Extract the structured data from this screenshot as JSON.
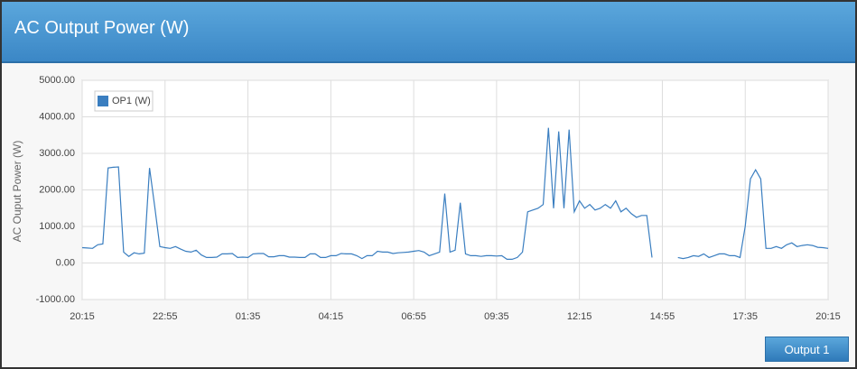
{
  "chart_data": {
    "type": "line",
    "title": "AC Output Power (W)",
    "y_label": "AC Ouput Power (W)",
    "xlim": [
      0,
      1440
    ],
    "xticks": [
      {
        "value": 0,
        "label": "20:15"
      },
      {
        "value": 160,
        "label": "22:55"
      },
      {
        "value": 320,
        "label": "01:35"
      },
      {
        "value": 480,
        "label": "04:15"
      },
      {
        "value": 640,
        "label": "06:55"
      },
      {
        "value": 800,
        "label": "09:35"
      },
      {
        "value": 960,
        "label": "12:15"
      },
      {
        "value": 1120,
        "label": "14:55"
      },
      {
        "value": 1280,
        "label": "17:35"
      },
      {
        "value": 1440,
        "label": "20:15"
      }
    ],
    "ylim": [
      -1000,
      5000
    ],
    "yticks": [
      {
        "value": -1000,
        "label": "-1000.00"
      },
      {
        "value": 0,
        "label": "0.00"
      },
      {
        "value": 1000,
        "label": "1000.00"
      },
      {
        "value": 2000,
        "label": "2000.00"
      },
      {
        "value": 3000,
        "label": "3000.00"
      },
      {
        "value": 4000,
        "label": "4000.00"
      },
      {
        "value": 5000,
        "label": "5000.00"
      }
    ],
    "grid": true,
    "legend": "top-left",
    "x": [
      0,
      10,
      20,
      30,
      40,
      50,
      60,
      70,
      80,
      90,
      100,
      110,
      120,
      130,
      140,
      150,
      160,
      170,
      180,
      190,
      200,
      210,
      220,
      230,
      240,
      250,
      260,
      270,
      280,
      290,
      300,
      310,
      320,
      330,
      340,
      350,
      360,
      370,
      380,
      390,
      400,
      410,
      420,
      430,
      440,
      450,
      460,
      470,
      480,
      490,
      500,
      510,
      520,
      530,
      540,
      550,
      560,
      570,
      580,
      590,
      600,
      610,
      620,
      630,
      640,
      650,
      660,
      670,
      680,
      690,
      700,
      710,
      720,
      730,
      740,
      750,
      760,
      770,
      780,
      790,
      800,
      810,
      820,
      830,
      840,
      850,
      860,
      870,
      880,
      890,
      900,
      910,
      920,
      930,
      940,
      950,
      960,
      970,
      980,
      990,
      1000,
      1010,
      1020,
      1030,
      1040,
      1050,
      1060,
      1070,
      1080,
      1090,
      1100,
      1110,
      1120,
      1130,
      1140,
      1150,
      1160,
      1170,
      1180,
      1190,
      1200,
      1210,
      1220,
      1230,
      1240,
      1250,
      1260,
      1270,
      1280,
      1290,
      1300,
      1310,
      1320,
      1330,
      1340,
      1350,
      1360,
      1370,
      1380,
      1390,
      1400,
      1410,
      1420,
      1430,
      1440
    ],
    "series": [
      {
        "name": "OP1 (W)",
        "color": "#3a7ec0",
        "values": [
          420,
          410,
          400,
          500,
          520,
          2600,
          2620,
          2630,
          300,
          180,
          280,
          250,
          270,
          2600,
          1550,
          450,
          420,
          400,
          450,
          380,
          320,
          300,
          350,
          220,
          150,
          150,
          160,
          250,
          250,
          260,
          150,
          160,
          150,
          250,
          260,
          260,
          170,
          170,
          200,
          200,
          160,
          160,
          150,
          150,
          250,
          250,
          150,
          150,
          200,
          200,
          260,
          250,
          250,
          200,
          120,
          200,
          200,
          320,
          300,
          300,
          260,
          280,
          290,
          300,
          320,
          340,
          300,
          200,
          250,
          300,
          1900,
          300,
          350,
          1650,
          250,
          200,
          200,
          180,
          200,
          200,
          190,
          200,
          100,
          100,
          150,
          300,
          1400,
          1450,
          1500,
          1600,
          3700,
          1500,
          3600,
          1500,
          3650,
          1400,
          1700,
          1500,
          1600,
          1450,
          1500,
          1600,
          1500,
          1700,
          1400,
          1500,
          1350,
          1250,
          1300,
          1300,
          150,
          null,
          null,
          null,
          null,
          150,
          120,
          150,
          200,
          180,
          250,
          150,
          200,
          250,
          250,
          200,
          200,
          150,
          1000,
          2300,
          2550,
          2300,
          400,
          400,
          450,
          400,
          500,
          550,
          450,
          480,
          500,
          480,
          430,
          420,
          400
        ]
      }
    ]
  },
  "button": "Output 1"
}
